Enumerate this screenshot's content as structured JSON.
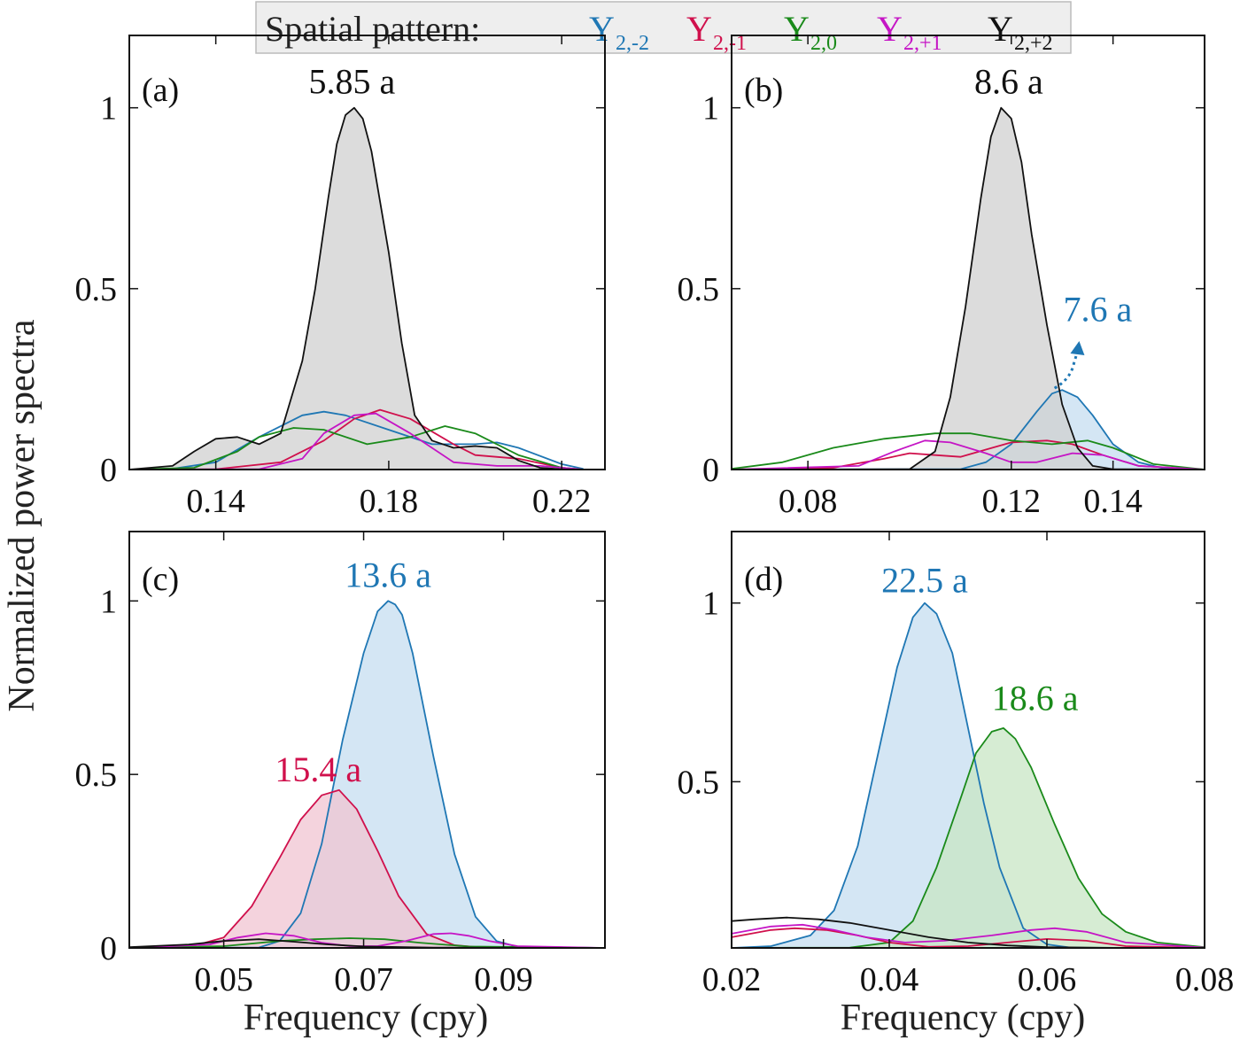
{
  "legend": {
    "title": "Spatial pattern:",
    "entries": [
      {
        "letter": "Y",
        "sub": "2,-2",
        "color": "#1f77b4"
      },
      {
        "letter": "Y",
        "sub": "2,-1",
        "color": "#d0104c"
      },
      {
        "letter": "Y",
        "sub": "2,0",
        "color": "#1a8a1a"
      },
      {
        "letter": "Y",
        "sub": "2,+1",
        "color": "#c515c5"
      },
      {
        "letter": "Y",
        "sub": "2,+2",
        "color": "#111111"
      }
    ]
  },
  "ylabel": "Normalized power spectra",
  "xlabel": "Frequency (cpy)",
  "chart_data": [
    {
      "panel": "(a)",
      "type": "line",
      "xlim": [
        0.12,
        0.23
      ],
      "ylim": [
        0,
        1.2
      ],
      "xticks": [
        0.14,
        0.18,
        0.22
      ],
      "xticklabels": [
        "0.14",
        "0.18",
        "0.22"
      ],
      "yticks": [
        0,
        0.5,
        1
      ],
      "yticklabels": [
        "0",
        "0.5",
        "1"
      ],
      "annotations": [
        {
          "text": "5.85 a",
          "x": 0.1715,
          "y": 1.04,
          "color": "#111111"
        }
      ],
      "series": [
        {
          "color": "#1f77b4",
          "fill": false,
          "x": [
            0.12,
            0.13,
            0.14,
            0.15,
            0.16,
            0.165,
            0.17,
            0.18,
            0.19,
            0.2,
            0.205,
            0.21,
            0.22,
            0.225
          ],
          "y": [
            0,
            0.002,
            0.02,
            0.09,
            0.15,
            0.16,
            0.15,
            0.11,
            0.07,
            0.07,
            0.075,
            0.06,
            0.015,
            0.002
          ]
        },
        {
          "color": "#d0104c",
          "fill": false,
          "x": [
            0.12,
            0.14,
            0.155,
            0.165,
            0.172,
            0.178,
            0.185,
            0.195,
            0.2,
            0.21,
            0.22,
            0.225
          ],
          "y": [
            0,
            0.001,
            0.02,
            0.08,
            0.14,
            0.165,
            0.14,
            0.07,
            0.04,
            0.03,
            0.005,
            0
          ],
          "_": ""
        },
        {
          "color": "#1a8a1a",
          "fill": false,
          "x": [
            0.12,
            0.135,
            0.145,
            0.15,
            0.158,
            0.165,
            0.175,
            0.185,
            0.193,
            0.2,
            0.21,
            0.22,
            0.225
          ],
          "y": [
            0,
            0.005,
            0.05,
            0.09,
            0.115,
            0.11,
            0.07,
            0.09,
            0.12,
            0.1,
            0.04,
            0.005,
            0
          ]
        },
        {
          "color": "#c515c5",
          "fill": false,
          "x": [
            0.12,
            0.15,
            0.16,
            0.165,
            0.172,
            0.177,
            0.185,
            0.195,
            0.205,
            0.215,
            0.225
          ],
          "y": [
            0,
            0.001,
            0.03,
            0.1,
            0.15,
            0.155,
            0.1,
            0.02,
            0.01,
            0.01,
            0
          ]
        },
        {
          "color": "#111111",
          "fill": true,
          "fillColor": "#d0d0d0",
          "x": [
            0.12,
            0.13,
            0.135,
            0.14,
            0.145,
            0.15,
            0.155,
            0.16,
            0.163,
            0.166,
            0.168,
            0.17,
            0.172,
            0.174,
            0.176,
            0.18,
            0.183,
            0.186,
            0.19,
            0.195,
            0.2,
            0.205,
            0.21,
            0.215,
            0.22,
            0.225
          ],
          "y": [
            0,
            0.01,
            0.05,
            0.085,
            0.09,
            0.07,
            0.1,
            0.3,
            0.5,
            0.75,
            0.9,
            0.98,
            1.0,
            0.97,
            0.88,
            0.6,
            0.35,
            0.15,
            0.08,
            0.06,
            0.065,
            0.06,
            0.025,
            0.005,
            0.001,
            0
          ]
        }
      ]
    },
    {
      "panel": "(b)",
      "type": "line",
      "xlim": [
        0.065,
        0.158
      ],
      "ylim": [
        0,
        1.2
      ],
      "xticks": [
        0.08,
        0.12,
        0.14
      ],
      "xticklabels": [
        "0.08",
        "0.12",
        "0.14"
      ],
      "yticks": [
        0,
        0.5,
        1
      ],
      "yticklabels": [
        "0",
        "0.5",
        "1"
      ],
      "annotations": [
        {
          "text": "8.6 a",
          "x": 0.1195,
          "y": 1.04,
          "color": "#111111"
        },
        {
          "text": "7.6 a",
          "x": 0.137,
          "y": 0.41,
          "color": "#1f77b4"
        }
      ],
      "series": [
        {
          "color": "#1f77b4",
          "fill": true,
          "fillColor": "#c6ddf0",
          "x": [
            0.065,
            0.11,
            0.115,
            0.12,
            0.125,
            0.128,
            0.13,
            0.133,
            0.136,
            0.14,
            0.145,
            0.15,
            0.158
          ],
          "y": [
            0,
            0.001,
            0.02,
            0.07,
            0.16,
            0.21,
            0.22,
            0.2,
            0.15,
            0.07,
            0.02,
            0.003,
            0
          ]
        },
        {
          "color": "#d0104c",
          "fill": false,
          "x": [
            0.065,
            0.085,
            0.095,
            0.1,
            0.105,
            0.11,
            0.115,
            0.12,
            0.127,
            0.132,
            0.138,
            0.145,
            0.158
          ],
          "y": [
            0,
            0.005,
            0.03,
            0.045,
            0.04,
            0.035,
            0.055,
            0.075,
            0.08,
            0.07,
            0.04,
            0.01,
            0
          ]
        },
        {
          "color": "#1a8a1a",
          "fill": false,
          "x": [
            0.065,
            0.075,
            0.085,
            0.095,
            0.105,
            0.112,
            0.12,
            0.128,
            0.135,
            0.14,
            0.148,
            0.158
          ],
          "y": [
            0.002,
            0.02,
            0.06,
            0.085,
            0.1,
            0.1,
            0.08,
            0.07,
            0.08,
            0.06,
            0.015,
            0
          ]
        },
        {
          "color": "#c515c5",
          "fill": false,
          "x": [
            0.065,
            0.09,
            0.097,
            0.103,
            0.108,
            0.115,
            0.12,
            0.125,
            0.132,
            0.138,
            0.145,
            0.158
          ],
          "y": [
            0,
            0.01,
            0.05,
            0.08,
            0.075,
            0.045,
            0.02,
            0.02,
            0.045,
            0.04,
            0.01,
            0
          ]
        },
        {
          "color": "#111111",
          "fill": true,
          "fillColor": "#d0d0d0",
          "x": [
            0.065,
            0.1,
            0.105,
            0.108,
            0.111,
            0.114,
            0.116,
            0.118,
            0.12,
            0.122,
            0.124,
            0.127,
            0.13,
            0.133,
            0.136,
            0.14,
            0.158
          ],
          "y": [
            0,
            0.001,
            0.05,
            0.2,
            0.45,
            0.75,
            0.92,
            1.0,
            0.97,
            0.85,
            0.65,
            0.4,
            0.18,
            0.06,
            0.01,
            0.001,
            0
          ]
        }
      ]
    },
    {
      "panel": "(c)",
      "type": "line",
      "xlim": [
        0.0365,
        0.1045
      ],
      "ylim": [
        0,
        1.2
      ],
      "xticks": [
        0.05,
        0.07,
        0.09
      ],
      "xticklabels": [
        "0.05",
        "0.07",
        "0.09"
      ],
      "yticks": [
        0,
        0.5,
        1
      ],
      "yticklabels": [
        "0",
        "0.5",
        "1"
      ],
      "annotations": [
        {
          "text": "13.6 a",
          "x": 0.0735,
          "y": 1.04,
          "color": "#1f77b4"
        },
        {
          "text": "15.4 a",
          "x": 0.0635,
          "y": 0.48,
          "color": "#d0104c"
        }
      ],
      "series": [
        {
          "color": "#1f77b4",
          "fill": true,
          "fillColor": "#c6ddf0",
          "x": [
            0.0365,
            0.055,
            0.058,
            0.061,
            0.064,
            0.067,
            0.07,
            0.072,
            0.0735,
            0.0745,
            0.0755,
            0.077,
            0.08,
            0.083,
            0.086,
            0.089,
            0.092,
            0.1045
          ],
          "y": [
            0,
            0.001,
            0.02,
            0.1,
            0.3,
            0.6,
            0.85,
            0.97,
            1.0,
            0.99,
            0.96,
            0.85,
            0.55,
            0.27,
            0.09,
            0.02,
            0.003,
            0
          ]
        },
        {
          "color": "#d0104c",
          "fill": true,
          "fillColor": "#f0c4d2",
          "x": [
            0.0365,
            0.045,
            0.05,
            0.054,
            0.058,
            0.061,
            0.064,
            0.0665,
            0.069,
            0.072,
            0.075,
            0.079,
            0.083,
            0.087,
            0.1045
          ],
          "y": [
            0,
            0.002,
            0.03,
            0.12,
            0.26,
            0.37,
            0.44,
            0.455,
            0.4,
            0.28,
            0.15,
            0.04,
            0.008,
            0.001,
            0
          ]
        },
        {
          "color": "#1a8a1a",
          "fill": false,
          "x": [
            0.0365,
            0.05,
            0.058,
            0.063,
            0.068,
            0.073,
            0.078,
            0.085,
            0.1045
          ],
          "y": [
            0,
            0.005,
            0.02,
            0.025,
            0.028,
            0.025,
            0.015,
            0.004,
            0
          ]
        },
        {
          "color": "#c515c5",
          "fill": false,
          "x": [
            0.0365,
            0.048,
            0.052,
            0.056,
            0.06,
            0.064,
            0.068,
            0.072,
            0.076,
            0.08,
            0.0825,
            0.085,
            0.088,
            0.092,
            0.1045
          ],
          "y": [
            0,
            0.01,
            0.03,
            0.042,
            0.035,
            0.015,
            0.005,
            0.005,
            0.02,
            0.04,
            0.042,
            0.035,
            0.02,
            0.005,
            0
          ]
        },
        {
          "color": "#111111",
          "fill": false,
          "x": [
            0.0365,
            0.045,
            0.05,
            0.055,
            0.06,
            0.065,
            0.07,
            0.08,
            0.1045
          ],
          "y": [
            0.002,
            0.01,
            0.02,
            0.025,
            0.018,
            0.01,
            0.004,
            0.001,
            0
          ]
        }
      ]
    },
    {
      "panel": "(d)",
      "type": "line",
      "xlim": [
        0.02,
        0.08
      ],
      "ylim": [
        0.035,
        1.2
      ],
      "xticks": [
        0.02,
        0.04,
        0.06,
        0.08
      ],
      "xticklabels": [
        "0.02",
        "0.04",
        "0.06",
        "0.08"
      ],
      "yticks": [
        0.5,
        1
      ],
      "yticklabels": [
        "0.5",
        "1"
      ],
      "annotations": [
        {
          "text": "22.5 a",
          "x": 0.0445,
          "y": 1.03,
          "color": "#1f77b4"
        },
        {
          "text": "18.6 a",
          "x": 0.0585,
          "y": 0.7,
          "color": "#1a8a1a"
        }
      ],
      "series": [
        {
          "color": "#1f77b4",
          "fill": true,
          "fillColor": "#c6ddf0",
          "x": [
            0.02,
            0.025,
            0.03,
            0.033,
            0.036,
            0.039,
            0.041,
            0.043,
            0.0445,
            0.046,
            0.048,
            0.05,
            0.052,
            0.054,
            0.057,
            0.06,
            0.063,
            0.066,
            0.08
          ],
          "y": [
            0.035,
            0.04,
            0.07,
            0.14,
            0.32,
            0.62,
            0.82,
            0.96,
            1.0,
            0.97,
            0.86,
            0.65,
            0.44,
            0.26,
            0.09,
            0.045,
            0.036,
            0.035,
            0.035
          ]
        },
        {
          "color": "#1a8a1a",
          "fill": true,
          "fillColor": "#c8e6c4",
          "x": [
            0.02,
            0.035,
            0.04,
            0.043,
            0.046,
            0.049,
            0.051,
            0.053,
            0.0545,
            0.056,
            0.058,
            0.061,
            0.064,
            0.067,
            0.07,
            0.074,
            0.08
          ],
          "y": [
            0.035,
            0.036,
            0.05,
            0.11,
            0.26,
            0.45,
            0.58,
            0.64,
            0.65,
            0.62,
            0.54,
            0.38,
            0.23,
            0.13,
            0.08,
            0.05,
            0.037
          ]
        },
        {
          "color": "#d0104c",
          "fill": false,
          "x": [
            0.02,
            0.025,
            0.028,
            0.032,
            0.036,
            0.04,
            0.045,
            0.05,
            0.055,
            0.06,
            0.065,
            0.07,
            0.08
          ],
          "y": [
            0.065,
            0.085,
            0.09,
            0.085,
            0.07,
            0.05,
            0.038,
            0.04,
            0.05,
            0.06,
            0.055,
            0.04,
            0.035
          ]
        },
        {
          "color": "#c515c5",
          "fill": false,
          "x": [
            0.02,
            0.025,
            0.029,
            0.033,
            0.037,
            0.042,
            0.047,
            0.053,
            0.058,
            0.061,
            0.065,
            0.07,
            0.08
          ],
          "y": [
            0.075,
            0.095,
            0.1,
            0.085,
            0.065,
            0.05,
            0.055,
            0.07,
            0.085,
            0.09,
            0.08,
            0.05,
            0.036
          ]
        },
        {
          "color": "#111111",
          "fill": false,
          "x": [
            0.02,
            0.023,
            0.027,
            0.031,
            0.035,
            0.04,
            0.045,
            0.05,
            0.055,
            0.06,
            0.07,
            0.08
          ],
          "y": [
            0.11,
            0.115,
            0.12,
            0.115,
            0.105,
            0.085,
            0.065,
            0.05,
            0.042,
            0.037,
            0.035,
            0.035
          ]
        }
      ]
    }
  ]
}
